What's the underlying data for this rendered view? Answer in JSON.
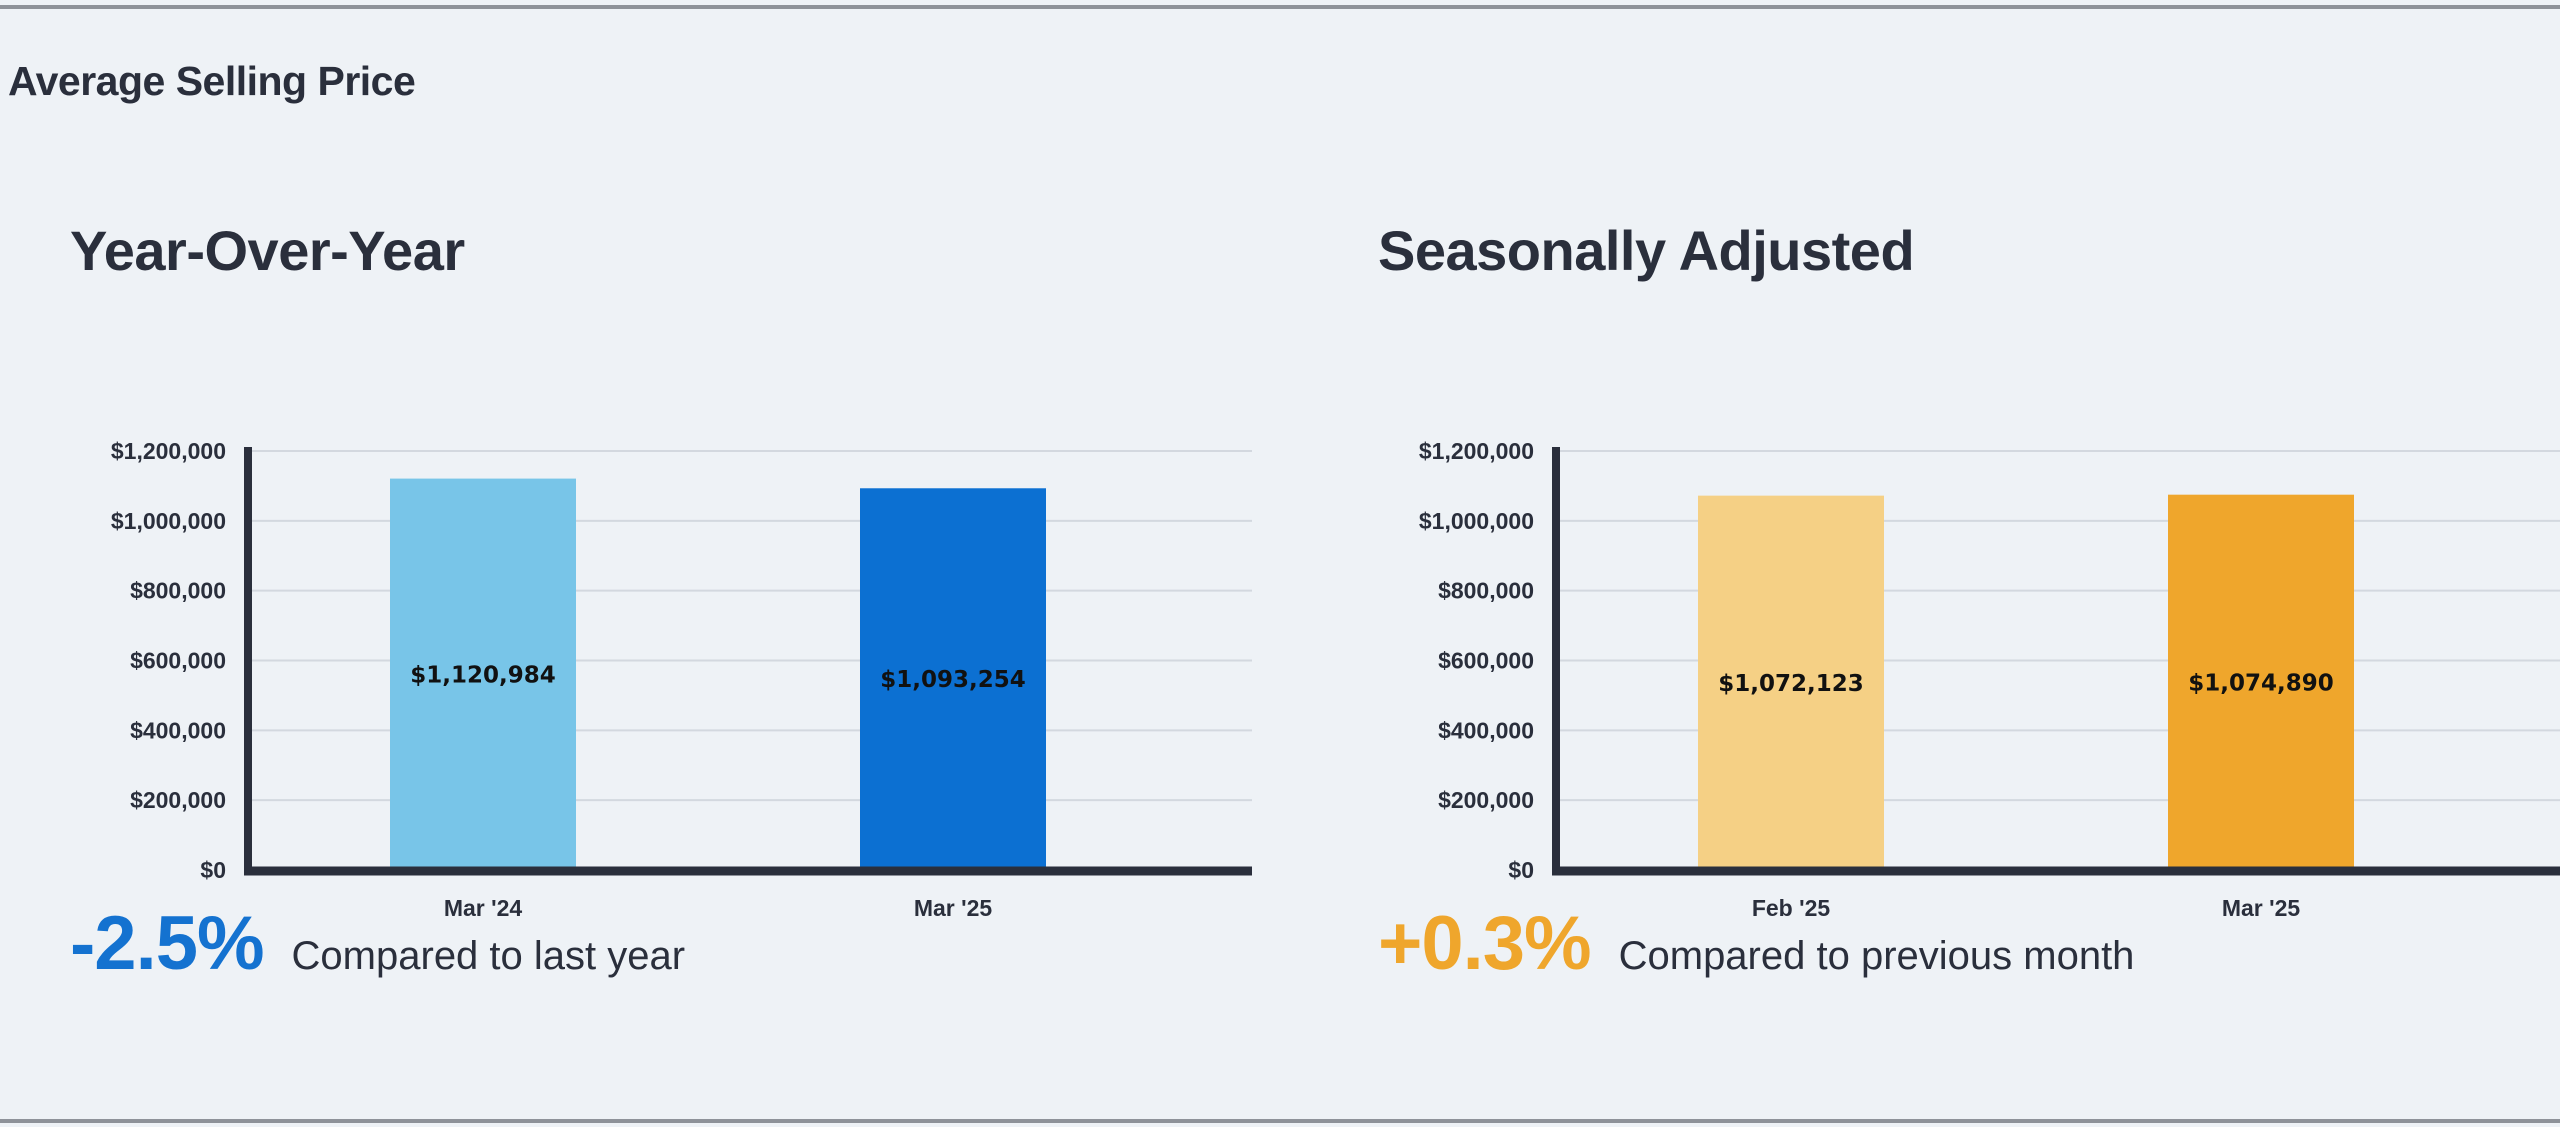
{
  "section_title": "Average Selling Price",
  "panels": [
    {
      "title": "Year-Over-Year",
      "stat": {
        "value": "-2.5%",
        "text": "Compared to last year",
        "color": "#1472d0"
      }
    },
    {
      "title": "Seasonally Adjusted",
      "stat": {
        "value": "+0.3%",
        "text": "Compared to previous month",
        "color": "#efa62c"
      }
    }
  ],
  "chart_data": [
    {
      "type": "bar",
      "title": "Year-Over-Year",
      "categories": [
        "Mar '24",
        "Mar '25"
      ],
      "values": [
        1120984,
        1093254
      ],
      "value_labels": [
        "$1,120,984",
        "$1,093,254"
      ],
      "colors": [
        "#78c5e8",
        "#0c70d2"
      ],
      "ylim": [
        0,
        1200000
      ],
      "yticks": [
        0,
        200000,
        400000,
        600000,
        800000,
        1000000,
        1200000
      ],
      "ytick_labels": [
        "$0",
        "$200,000",
        "$400,000",
        "$600,000",
        "$800,000",
        "$1,000,000",
        "$1,200,000"
      ],
      "grid": true
    },
    {
      "type": "bar",
      "title": "Seasonally Adjusted",
      "categories": [
        "Feb '25",
        "Mar '25"
      ],
      "values": [
        1072123,
        1074890
      ],
      "value_labels": [
        "$1,072,123",
        "$1,074,890"
      ],
      "colors": [
        "#f5d085",
        "#efa62c"
      ],
      "ylim": [
        0,
        1200000
      ],
      "yticks": [
        0,
        200000,
        400000,
        600000,
        800000,
        1000000,
        1200000
      ],
      "ytick_labels": [
        "$0",
        "$200,000",
        "$400,000",
        "$600,000",
        "$800,000",
        "$1,000,000",
        "$1,200,000"
      ],
      "grid": true
    }
  ]
}
